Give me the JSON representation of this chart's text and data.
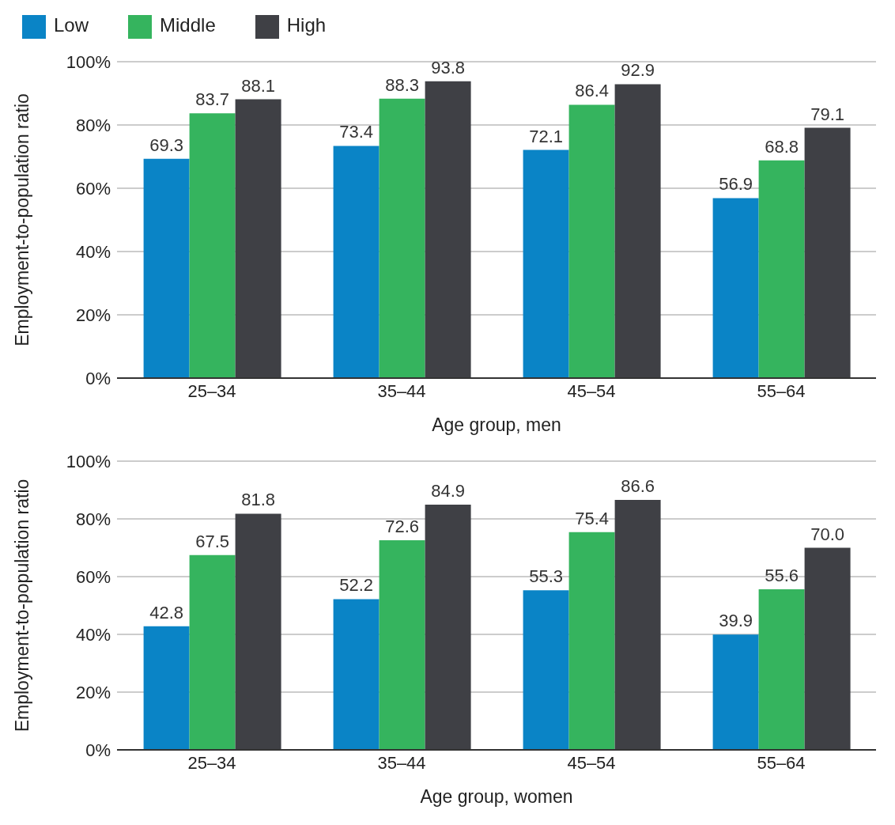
{
  "chart_data": [
    {
      "type": "bar",
      "categories": [
        "25–34",
        "35–44",
        "45–54",
        "55–64"
      ],
      "xlabel": "Age group, men",
      "ylabel": "Employment-to-population ratio",
      "ylim": [
        0,
        100
      ],
      "yticks": [
        {
          "value": 0,
          "label": "0%"
        },
        {
          "value": 20,
          "label": "20%"
        },
        {
          "value": 40,
          "label": "40%"
        },
        {
          "value": 60,
          "label": "60%"
        },
        {
          "value": 80,
          "label": "80%"
        },
        {
          "value": 100,
          "label": "100%"
        }
      ],
      "grid": "y",
      "legend": "top left",
      "series": [
        {
          "name": "Low",
          "color": "#0a84c6",
          "values": [
            69.3,
            73.4,
            72.1,
            56.9
          ],
          "value_labels": [
            "69.3",
            "73.4",
            "72.1",
            "56.9"
          ]
        },
        {
          "name": "Middle",
          "color": "#35b45e",
          "values": [
            83.7,
            88.3,
            86.4,
            68.8
          ],
          "value_labels": [
            "83.7",
            "88.3",
            "86.4",
            "68.8"
          ]
        },
        {
          "name": "High",
          "color": "#3f4045",
          "values": [
            88.1,
            93.8,
            92.9,
            79.1
          ],
          "value_labels": [
            "88.1",
            "93.8",
            "92.9",
            "79.1"
          ]
        }
      ]
    },
    {
      "type": "bar",
      "categories": [
        "25–34",
        "35–44",
        "45–54",
        "55–64"
      ],
      "xlabel": "Age group, women",
      "ylabel": "Employment-to-population ratio",
      "ylim": [
        0,
        100
      ],
      "yticks": [
        {
          "value": 0,
          "label": "0%"
        },
        {
          "value": 20,
          "label": "20%"
        },
        {
          "value": 40,
          "label": "40%"
        },
        {
          "value": 60,
          "label": "60%"
        },
        {
          "value": 80,
          "label": "80%"
        },
        {
          "value": 100,
          "label": "100%"
        }
      ],
      "grid": "y",
      "series": [
        {
          "color": "#0a84c6",
          "values": [
            42.8,
            52.2,
            55.3,
            39.9
          ],
          "value_labels": [
            "42.8",
            "52.2",
            "55.3",
            "39.9"
          ]
        },
        {
          "color": "#35b45e",
          "values": [
            67.5,
            72.6,
            75.4,
            55.6
          ],
          "value_labels": [
            "67.5",
            "72.6",
            "75.4",
            "55.6"
          ]
        },
        {
          "color": "#3f4045",
          "values": [
            81.8,
            84.9,
            86.6,
            70.0
          ],
          "value_labels": [
            "81.8",
            "84.9",
            "86.6",
            "70.0"
          ]
        }
      ]
    }
  ]
}
